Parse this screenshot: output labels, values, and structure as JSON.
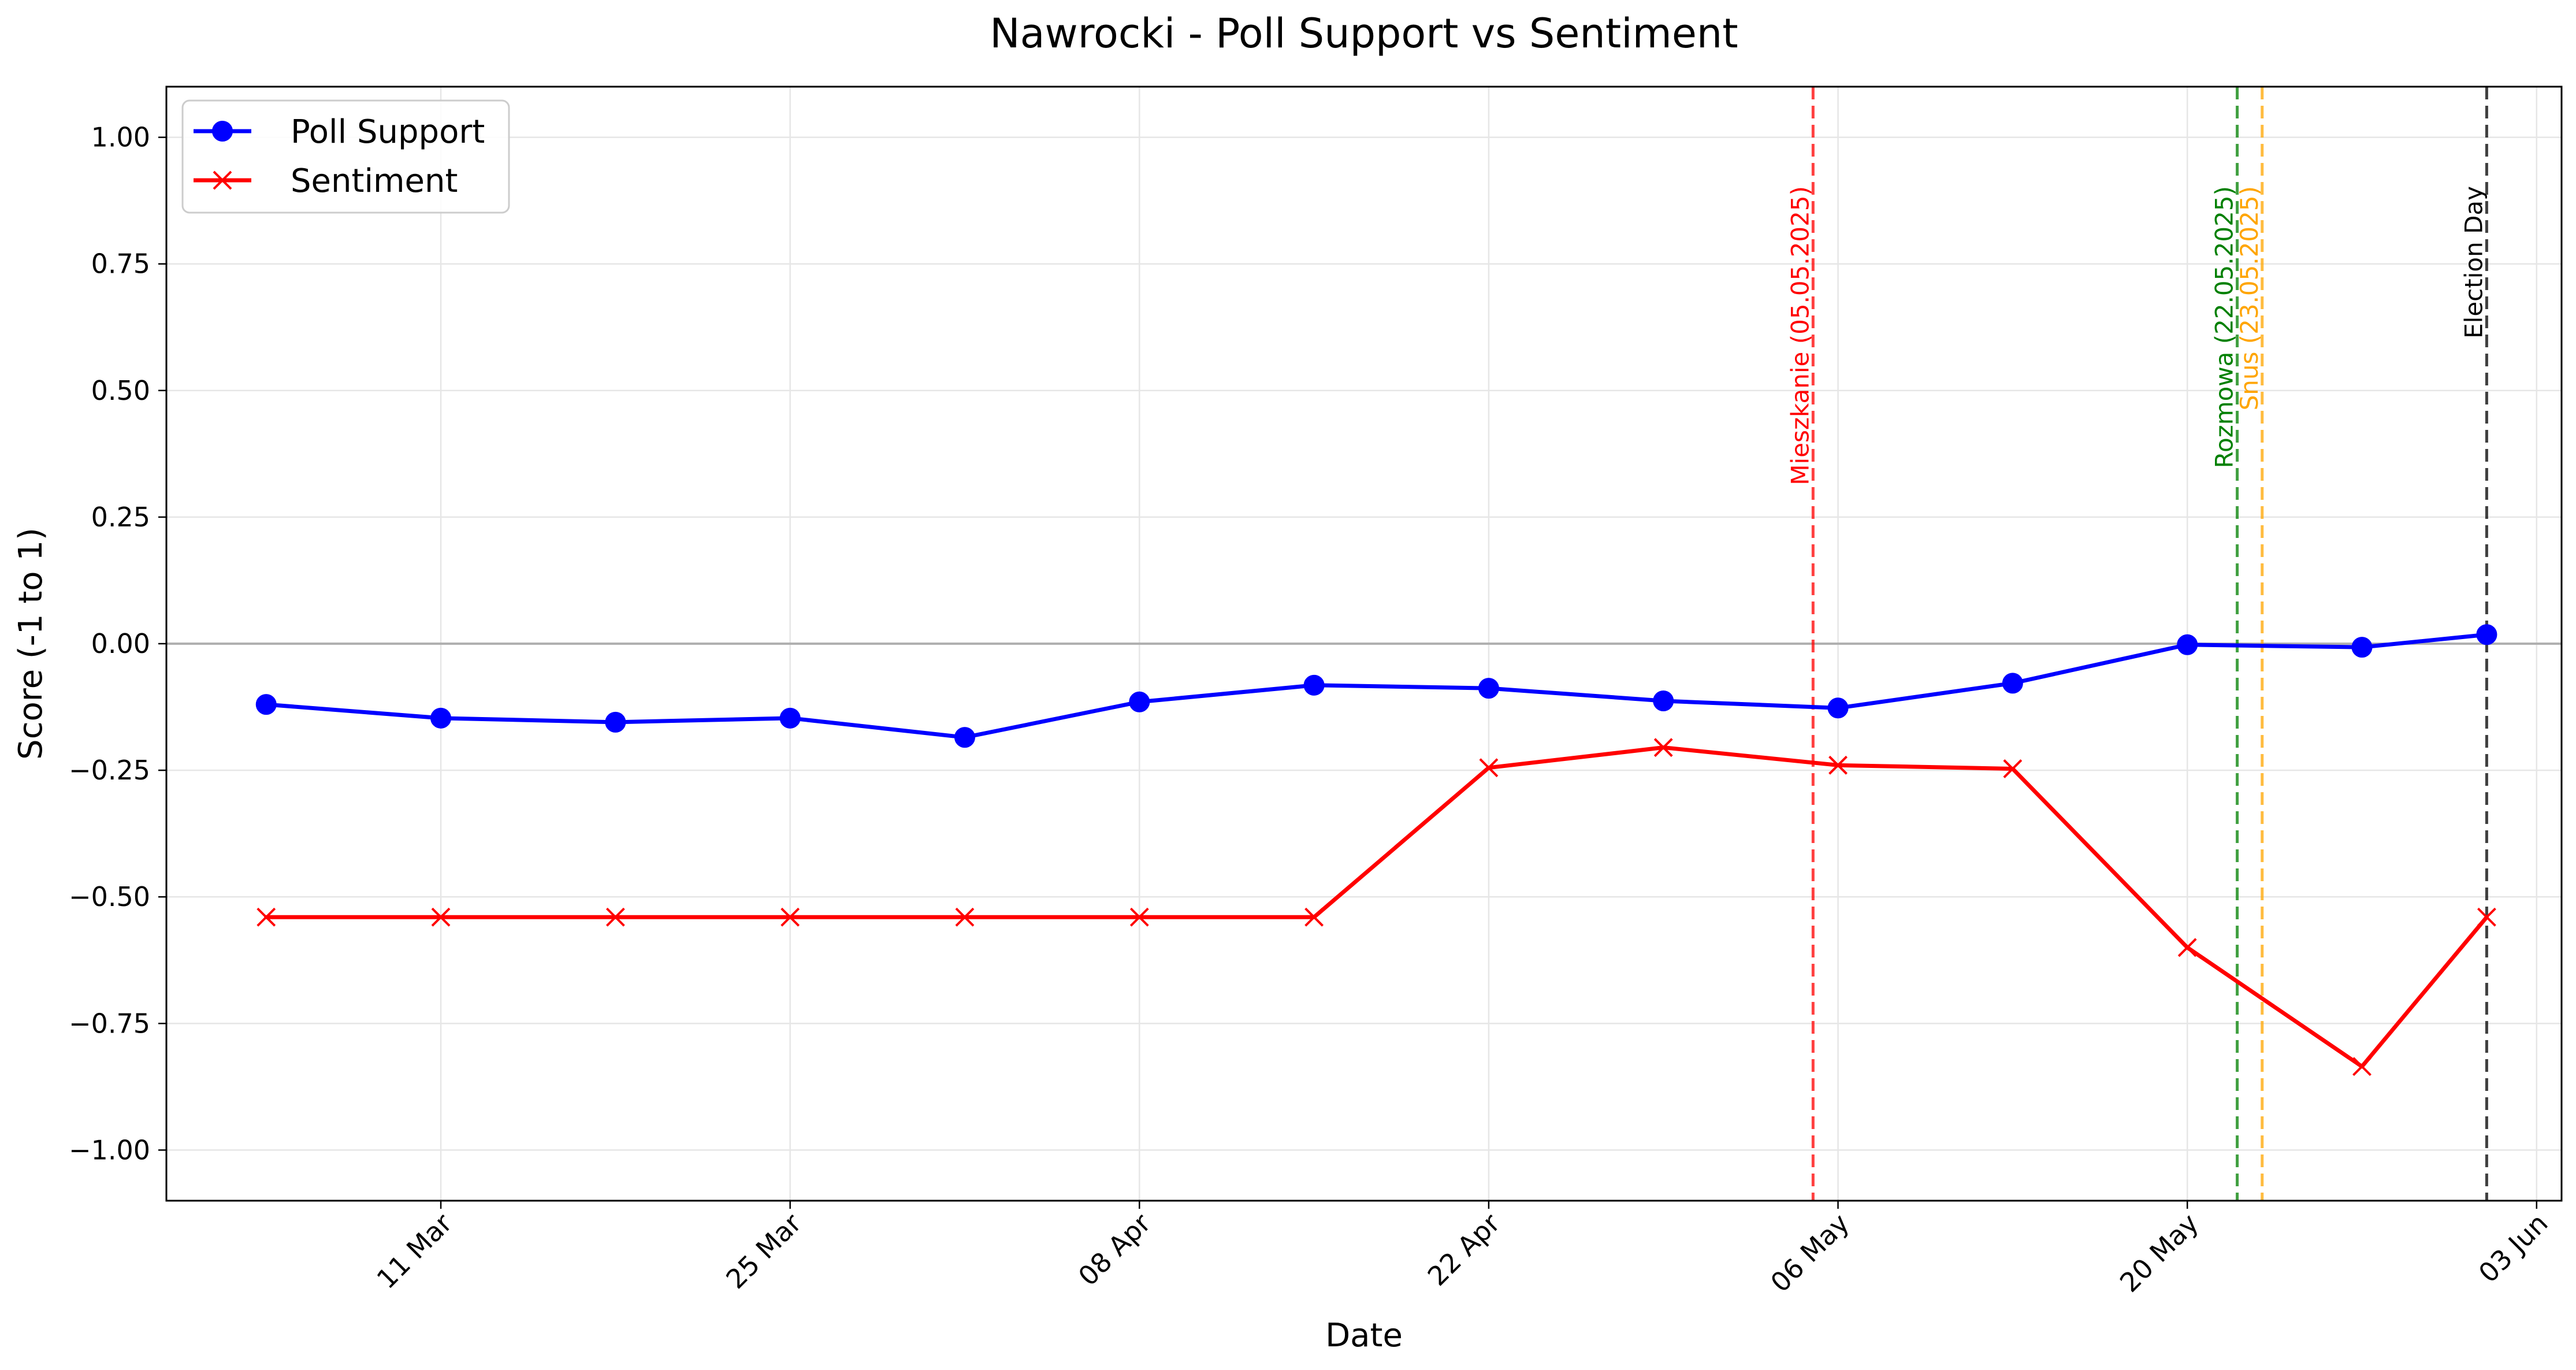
{
  "chart_data": {
    "type": "line",
    "title": "Nawrocki - Poll Support vs Sentiment",
    "xlabel": "Date",
    "ylabel": "Score (-1 to 1)",
    "ylim": [
      -1.1,
      1.1
    ],
    "xlim": [
      "2025-02-28",
      "2025-06-04"
    ],
    "grid": true,
    "legend_position": "top-left",
    "x_ticks": [
      {
        "date": "2025-03-11",
        "label": "11 Mar"
      },
      {
        "date": "2025-03-25",
        "label": "25 Mar"
      },
      {
        "date": "2025-04-08",
        "label": "08 Apr"
      },
      {
        "date": "2025-04-22",
        "label": "22 Apr"
      },
      {
        "date": "2025-05-06",
        "label": "06 May"
      },
      {
        "date": "2025-05-20",
        "label": "20 May"
      },
      {
        "date": "2025-06-03",
        "label": "03 Jun"
      }
    ],
    "y_ticks": [
      {
        "value": 1.0,
        "label": "1.00"
      },
      {
        "value": 0.75,
        "label": "0.75"
      },
      {
        "value": 0.5,
        "label": "0.50"
      },
      {
        "value": 0.25,
        "label": "0.25"
      },
      {
        "value": 0.0,
        "label": "0.00"
      },
      {
        "value": -0.25,
        "label": "−0.25"
      },
      {
        "value": -0.5,
        "label": "−0.50"
      },
      {
        "value": -0.75,
        "label": "−0.75"
      },
      {
        "value": -1.0,
        "label": "−1.00"
      }
    ],
    "zero_line": {
      "value": 0.0,
      "color": "#b0b0b0"
    },
    "series": [
      {
        "name": "Poll Support",
        "color": "#0000ff",
        "marker": "circle",
        "points": [
          {
            "x": "2025-03-04",
            "y": -0.12
          },
          {
            "x": "2025-03-11",
            "y": -0.147
          },
          {
            "x": "2025-03-18",
            "y": -0.155
          },
          {
            "x": "2025-03-25",
            "y": -0.147
          },
          {
            "x": "2025-04-01",
            "y": -0.185
          },
          {
            "x": "2025-04-08",
            "y": -0.115
          },
          {
            "x": "2025-04-15",
            "y": -0.082
          },
          {
            "x": "2025-04-22",
            "y": -0.088
          },
          {
            "x": "2025-04-29",
            "y": -0.113
          },
          {
            "x": "2025-05-06",
            "y": -0.127
          },
          {
            "x": "2025-05-13",
            "y": -0.078
          },
          {
            "x": "2025-05-20",
            "y": -0.002
          },
          {
            "x": "2025-05-27",
            "y": -0.007
          },
          {
            "x": "2025-06-01",
            "y": 0.018
          }
        ]
      },
      {
        "name": "Sentiment",
        "color": "#ff0000",
        "marker": "x",
        "points": [
          {
            "x": "2025-03-04",
            "y": -0.54
          },
          {
            "x": "2025-03-11",
            "y": -0.54
          },
          {
            "x": "2025-03-18",
            "y": -0.54
          },
          {
            "x": "2025-03-25",
            "y": -0.54
          },
          {
            "x": "2025-04-01",
            "y": -0.54
          },
          {
            "x": "2025-04-08",
            "y": -0.54
          },
          {
            "x": "2025-04-15",
            "y": -0.54
          },
          {
            "x": "2025-04-22",
            "y": -0.245
          },
          {
            "x": "2025-04-29",
            "y": -0.205
          },
          {
            "x": "2025-05-06",
            "y": -0.24
          },
          {
            "x": "2025-05-13",
            "y": -0.247
          },
          {
            "x": "2025-05-20",
            "y": -0.6
          },
          {
            "x": "2025-05-27",
            "y": -0.835
          },
          {
            "x": "2025-06-01",
            "y": -0.54
          }
        ]
      }
    ],
    "events": [
      {
        "date": "2025-05-05",
        "label": "Mieszkanie (05.05.2025)",
        "color": "#ff0000"
      },
      {
        "date": "2025-05-22",
        "label": "Rozmowa (22.05.2025)",
        "color": "#008000"
      },
      {
        "date": "2025-05-23",
        "label": "Snus (23.05.2025)",
        "color": "#ffa500"
      },
      {
        "date": "2025-06-01",
        "label": "Election Day",
        "color": "#000000"
      }
    ]
  }
}
